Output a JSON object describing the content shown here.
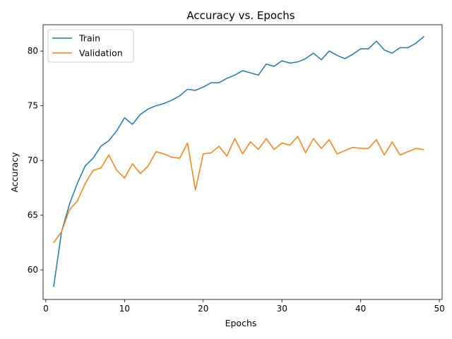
{
  "chart_data": {
    "type": "line",
    "title": "Accuracy vs. Epochs",
    "xlabel": "Epochs",
    "ylabel": "Accuracy",
    "xlim": [
      -0.35,
      50.35
    ],
    "ylim": [
      57.3,
      82.4
    ],
    "xticks": [
      0,
      10,
      20,
      30,
      40,
      50
    ],
    "yticks": [
      60,
      65,
      70,
      75,
      80
    ],
    "grid": false,
    "legend_position": "top-left",
    "x": [
      1,
      2,
      3,
      4,
      5,
      6,
      7,
      8,
      9,
      10,
      11,
      12,
      13,
      14,
      15,
      16,
      17,
      18,
      19,
      20,
      21,
      22,
      23,
      24,
      25,
      26,
      27,
      28,
      29,
      30,
      31,
      32,
      33,
      34,
      35,
      36,
      37,
      38,
      39,
      40,
      41,
      42,
      43,
      44,
      45,
      46,
      47,
      48
    ],
    "series": [
      {
        "name": "Train",
        "color": "#1f77b4",
        "values": [
          58.5,
          63.5,
          66.0,
          67.9,
          69.5,
          70.2,
          71.3,
          71.8,
          72.7,
          73.9,
          73.3,
          74.2,
          74.7,
          75.0,
          75.2,
          75.5,
          75.9,
          76.5,
          76.4,
          76.7,
          77.1,
          77.1,
          77.5,
          77.8,
          78.2,
          78.0,
          77.8,
          78.8,
          78.6,
          79.1,
          78.9,
          79.0,
          79.3,
          79.8,
          79.2,
          80.0,
          79.6,
          79.3,
          79.7,
          80.2,
          80.2,
          80.9,
          80.1,
          79.8,
          80.3,
          80.3,
          80.7,
          81.3
        ]
      },
      {
        "name": "Validation",
        "color": "#ff7f0e",
        "values": [
          62.5,
          63.5,
          65.5,
          66.3,
          67.9,
          69.1,
          69.3,
          70.5,
          69.1,
          68.4,
          69.7,
          68.8,
          69.5,
          70.8,
          70.6,
          70.3,
          70.2,
          71.6,
          67.3,
          70.6,
          70.7,
          71.3,
          70.4,
          72.0,
          70.6,
          71.7,
          71.0,
          72.0,
          71.0,
          71.6,
          71.4,
          72.2,
          70.7,
          72.0,
          71.1,
          71.9,
          70.6,
          70.9,
          71.2,
          71.1,
          71.1,
          71.9,
          70.5,
          71.7,
          70.5,
          70.8,
          71.1,
          71.0
        ]
      }
    ]
  }
}
